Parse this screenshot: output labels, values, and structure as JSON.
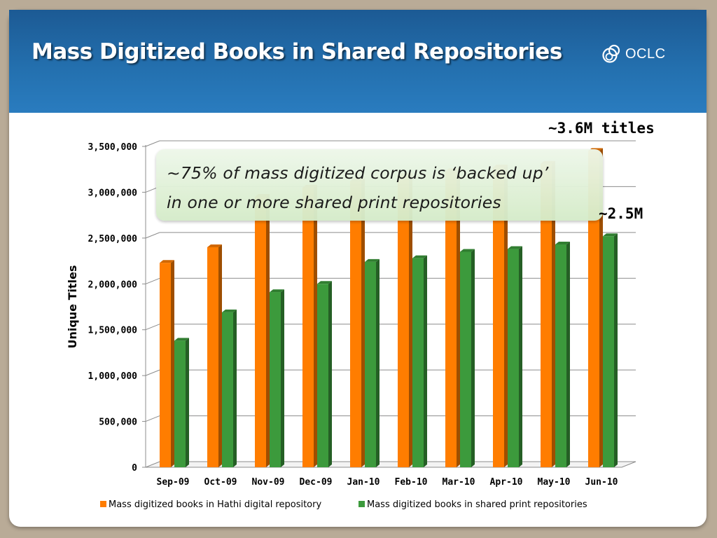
{
  "slide": {
    "title": "Mass Digitized Books in Shared Repositories",
    "logo_text": "OCLC",
    "logo_icon": "oclc-logo-icon",
    "callout_line1": "~75% of mass digitized corpus is ‘backed up’",
    "callout_line2": "in one or more shared print repositories",
    "annotation_top": "~3.6M titles",
    "annotation_mid": "~2.5M"
  },
  "colors": {
    "header": "#2471b0",
    "orange": "#ff7d00",
    "green": "#3c9a3c",
    "frame": "#b9ab97"
  },
  "chart_data": {
    "type": "bar",
    "categories": [
      "Sep-09",
      "Oct-09",
      "Nov-09",
      "Dec-09",
      "Jan-10",
      "Feb-10",
      "Mar-10",
      "Apr-10",
      "May-10",
      "Jun-10"
    ],
    "series": [
      {
        "name": "Mass digitized books in Hathi digital repository",
        "values": [
          2230000,
          2400000,
          2950000,
          3050000,
          3120000,
          3180000,
          3230000,
          3270000,
          3310000,
          3450000
        ]
      },
      {
        "name": "Mass digitized books in shared print repositories",
        "values": [
          1380000,
          1690000,
          1910000,
          2000000,
          2240000,
          2280000,
          2350000,
          2380000,
          2430000,
          2520000
        ]
      }
    ],
    "ylabel": "Unique Titles",
    "xlabel": "",
    "ylim": [
      0,
      3500000
    ],
    "yticks": [
      0,
      500000,
      1000000,
      1500000,
      2000000,
      2500000,
      3000000,
      3500000
    ],
    "ytick_labels": [
      "0",
      "500,000",
      "1,000,000",
      "1,500,000",
      "2,000,000",
      "2,500,000",
      "3,000,000",
      "3,500,000"
    ],
    "grid": true,
    "legend_position": "bottom"
  }
}
